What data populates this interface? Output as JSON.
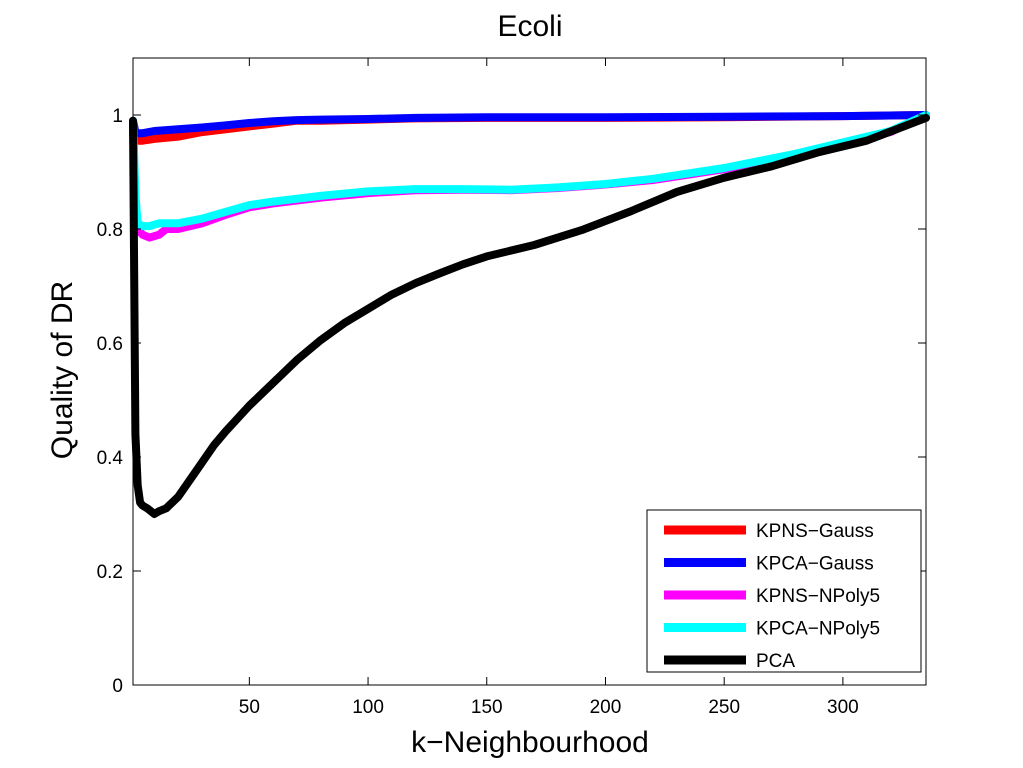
{
  "chart_data": {
    "type": "line",
    "title": "Ecoli",
    "xlabel": "k−Neighbourhood",
    "ylabel": "Quality of DR",
    "xlim": [
      1,
      335
    ],
    "ylim": [
      0,
      1.1
    ],
    "xticks": [
      50,
      100,
      150,
      200,
      250,
      300
    ],
    "yticks": [
      0,
      0.2,
      0.4,
      0.6,
      0.8,
      1
    ],
    "xtick_labels": [
      "50",
      "100",
      "150",
      "200",
      "250",
      "300"
    ],
    "ytick_labels": [
      "0",
      "0.2",
      "0.4",
      "0.6",
      "0.8",
      "1"
    ],
    "grid": false,
    "legend_position": "bottom-right",
    "series": [
      {
        "name": "KPNS−Gauss",
        "color": "#ff0000",
        "x": [
          1,
          2,
          3,
          5,
          10,
          20,
          30,
          40,
          50,
          60,
          70,
          80,
          100,
          120,
          150,
          200,
          250,
          300,
          335
        ],
        "y": [
          0.98,
          0.96,
          0.955,
          0.955,
          0.958,
          0.962,
          0.97,
          0.975,
          0.98,
          0.985,
          0.99,
          0.99,
          0.992,
          0.994,
          0.995,
          0.995,
          0.996,
          0.998,
          1.0
        ]
      },
      {
        "name": "KPCA−Gauss",
        "color": "#0000ff",
        "x": [
          1,
          2,
          3,
          5,
          10,
          20,
          30,
          40,
          50,
          60,
          70,
          80,
          100,
          120,
          150,
          200,
          250,
          300,
          335
        ],
        "y": [
          0.99,
          0.97,
          0.968,
          0.968,
          0.972,
          0.975,
          0.978,
          0.982,
          0.986,
          0.989,
          0.991,
          0.992,
          0.993,
          0.995,
          0.996,
          0.996,
          0.997,
          0.998,
          1.0
        ]
      },
      {
        "name": "KPNS−NPoly5",
        "color": "#ff00ff",
        "x": [
          1,
          2,
          3,
          5,
          8,
          12,
          15,
          20,
          30,
          40,
          50,
          60,
          80,
          100,
          120,
          140,
          160,
          180,
          200,
          220,
          250,
          280,
          300,
          320,
          335
        ],
        "y": [
          0.98,
          0.85,
          0.8,
          0.79,
          0.785,
          0.79,
          0.8,
          0.8,
          0.81,
          0.825,
          0.838,
          0.845,
          0.855,
          0.863,
          0.868,
          0.869,
          0.868,
          0.872,
          0.878,
          0.886,
          0.905,
          0.93,
          0.95,
          0.97,
          1.0
        ]
      },
      {
        "name": "KPCA−NPoly5",
        "color": "#00ffff",
        "x": [
          1,
          2,
          3,
          5,
          8,
          12,
          15,
          20,
          30,
          40,
          50,
          60,
          80,
          100,
          120,
          140,
          160,
          180,
          200,
          220,
          250,
          280,
          300,
          320,
          335
        ],
        "y": [
          0.99,
          0.86,
          0.81,
          0.805,
          0.805,
          0.81,
          0.81,
          0.81,
          0.818,
          0.83,
          0.842,
          0.848,
          0.858,
          0.866,
          0.87,
          0.87,
          0.869,
          0.873,
          0.879,
          0.888,
          0.907,
          0.932,
          0.952,
          0.972,
          1.0
        ]
      },
      {
        "name": "PCA",
        "color": "#000000",
        "x": [
          1,
          2,
          3,
          4,
          5,
          7,
          10,
          12,
          15,
          20,
          25,
          30,
          35,
          40,
          50,
          60,
          70,
          80,
          90,
          100,
          110,
          120,
          130,
          140,
          150,
          170,
          190,
          210,
          230,
          250,
          270,
          290,
          310,
          335
        ],
        "y": [
          0.99,
          0.44,
          0.35,
          0.32,
          0.315,
          0.31,
          0.3,
          0.305,
          0.31,
          0.33,
          0.36,
          0.39,
          0.42,
          0.445,
          0.49,
          0.53,
          0.57,
          0.605,
          0.635,
          0.66,
          0.685,
          0.705,
          0.722,
          0.738,
          0.752,
          0.772,
          0.798,
          0.83,
          0.865,
          0.89,
          0.91,
          0.935,
          0.955,
          0.995
        ]
      }
    ]
  }
}
